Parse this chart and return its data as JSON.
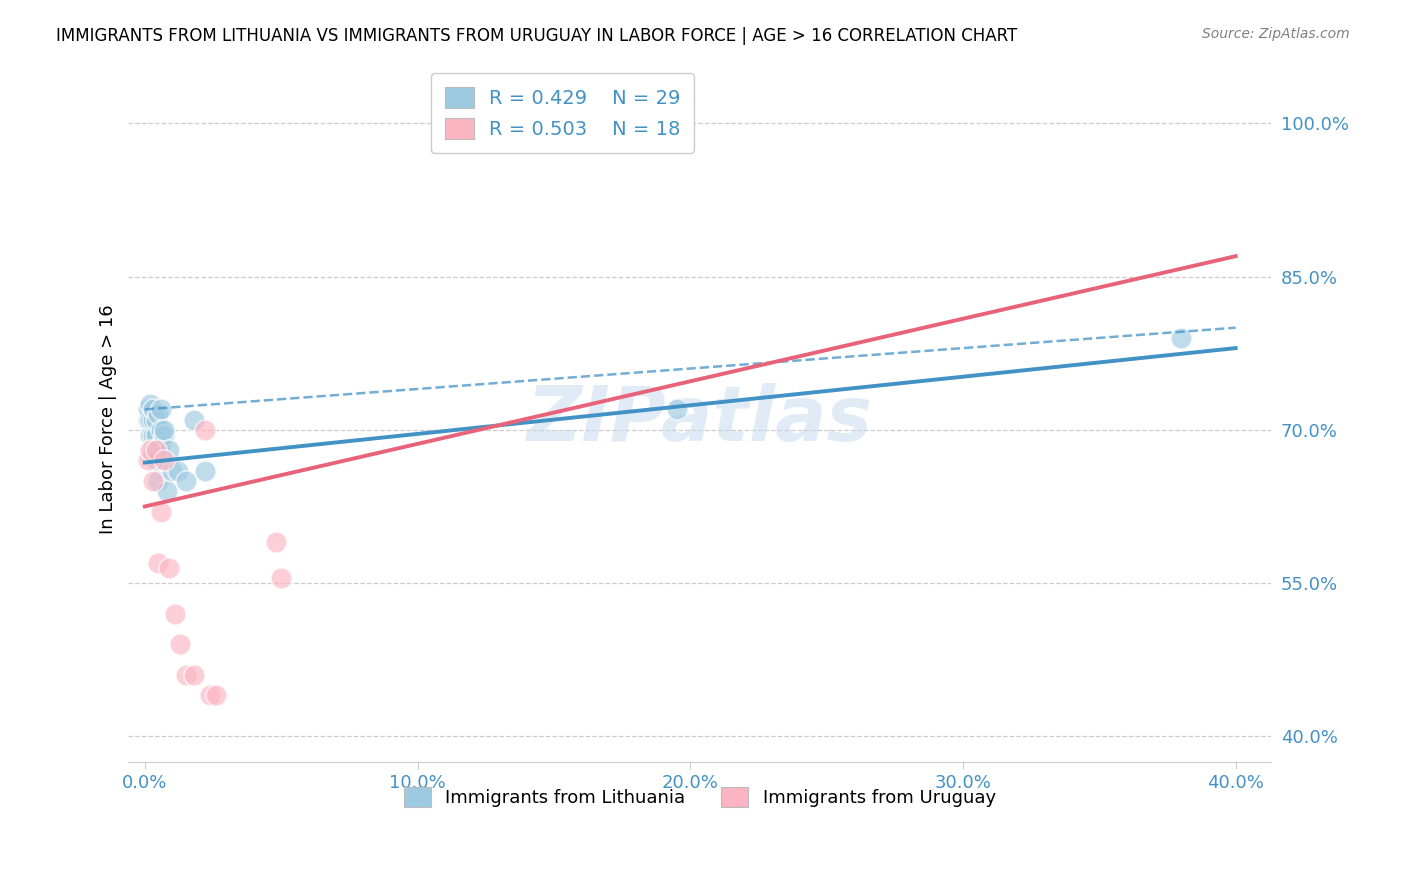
{
  "title": "IMMIGRANTS FROM LITHUANIA VS IMMIGRANTS FROM URUGUAY IN LABOR FORCE | AGE > 16 CORRELATION CHART",
  "source": "Source: ZipAtlas.com",
  "ylabel": "In Labor Force | Age > 16",
  "ylabel_ticks": [
    "40.0%",
    "55.0%",
    "70.0%",
    "85.0%",
    "100.0%"
  ],
  "ylabel_tick_values": [
    0.4,
    0.55,
    0.7,
    0.85,
    1.0
  ],
  "xlabel_ticks": [
    "0.0%",
    "10.0%",
    "20.0%",
    "30.0%",
    "40.0%"
  ],
  "xlabel_tick_values": [
    0.0,
    0.1,
    0.2,
    0.3,
    0.4
  ],
  "xmin": -0.006,
  "xmax": 0.413,
  "ymin": 0.375,
  "ymax": 1.045,
  "legend_R1": "R = 0.429",
  "legend_N1": "N = 29",
  "legend_R2": "R = 0.503",
  "legend_N2": "N = 18",
  "color_blue_scatter": "#9ecae1",
  "color_pink_scatter": "#fbb4c2",
  "color_blue_line": "#4292c6",
  "color_pink_line": "#e8637a",
  "color_axis_text": "#4292c6",
  "color_grid": "#cccccc",
  "watermark": "ZIPatlas",
  "watermark_color": "#c5d9ee",
  "lit_trend_x0": 0.0,
  "lit_trend_y0": 0.668,
  "lit_trend_x1": 0.4,
  "lit_trend_y1": 0.78,
  "uru_trend_x0": 0.0,
  "uru_trend_y0": 0.625,
  "uru_trend_x1": 0.4,
  "uru_trend_y1": 0.87,
  "dash_trend_x0": 0.0,
  "dash_trend_y0": 0.72,
  "dash_trend_x1": 0.4,
  "dash_trend_y1": 0.8,
  "lithuania_x": [
    0.001,
    0.001,
    0.002,
    0.002,
    0.002,
    0.003,
    0.003,
    0.003,
    0.003,
    0.004,
    0.004,
    0.004,
    0.005,
    0.005,
    0.005,
    0.006,
    0.006,
    0.006,
    0.007,
    0.007,
    0.008,
    0.009,
    0.01,
    0.012,
    0.015,
    0.018,
    0.022,
    0.195,
    0.38
  ],
  "lithuania_y": [
    0.71,
    0.72,
    0.695,
    0.71,
    0.725,
    0.68,
    0.695,
    0.71,
    0.72,
    0.67,
    0.695,
    0.71,
    0.65,
    0.68,
    0.715,
    0.685,
    0.7,
    0.72,
    0.695,
    0.7,
    0.64,
    0.68,
    0.66,
    0.66,
    0.65,
    0.71,
    0.66,
    0.72,
    0.79
  ],
  "uruguay_x": [
    0.001,
    0.002,
    0.003,
    0.004,
    0.005,
    0.006,
    0.007,
    0.009,
    0.011,
    0.013,
    0.015,
    0.018,
    0.022,
    0.024,
    0.026,
    0.048,
    0.05,
    0.195
  ],
  "uruguay_y": [
    0.67,
    0.68,
    0.65,
    0.68,
    0.57,
    0.62,
    0.67,
    0.565,
    0.52,
    0.49,
    0.46,
    0.46,
    0.7,
    0.44,
    0.44,
    0.59,
    0.555,
    1.0
  ]
}
